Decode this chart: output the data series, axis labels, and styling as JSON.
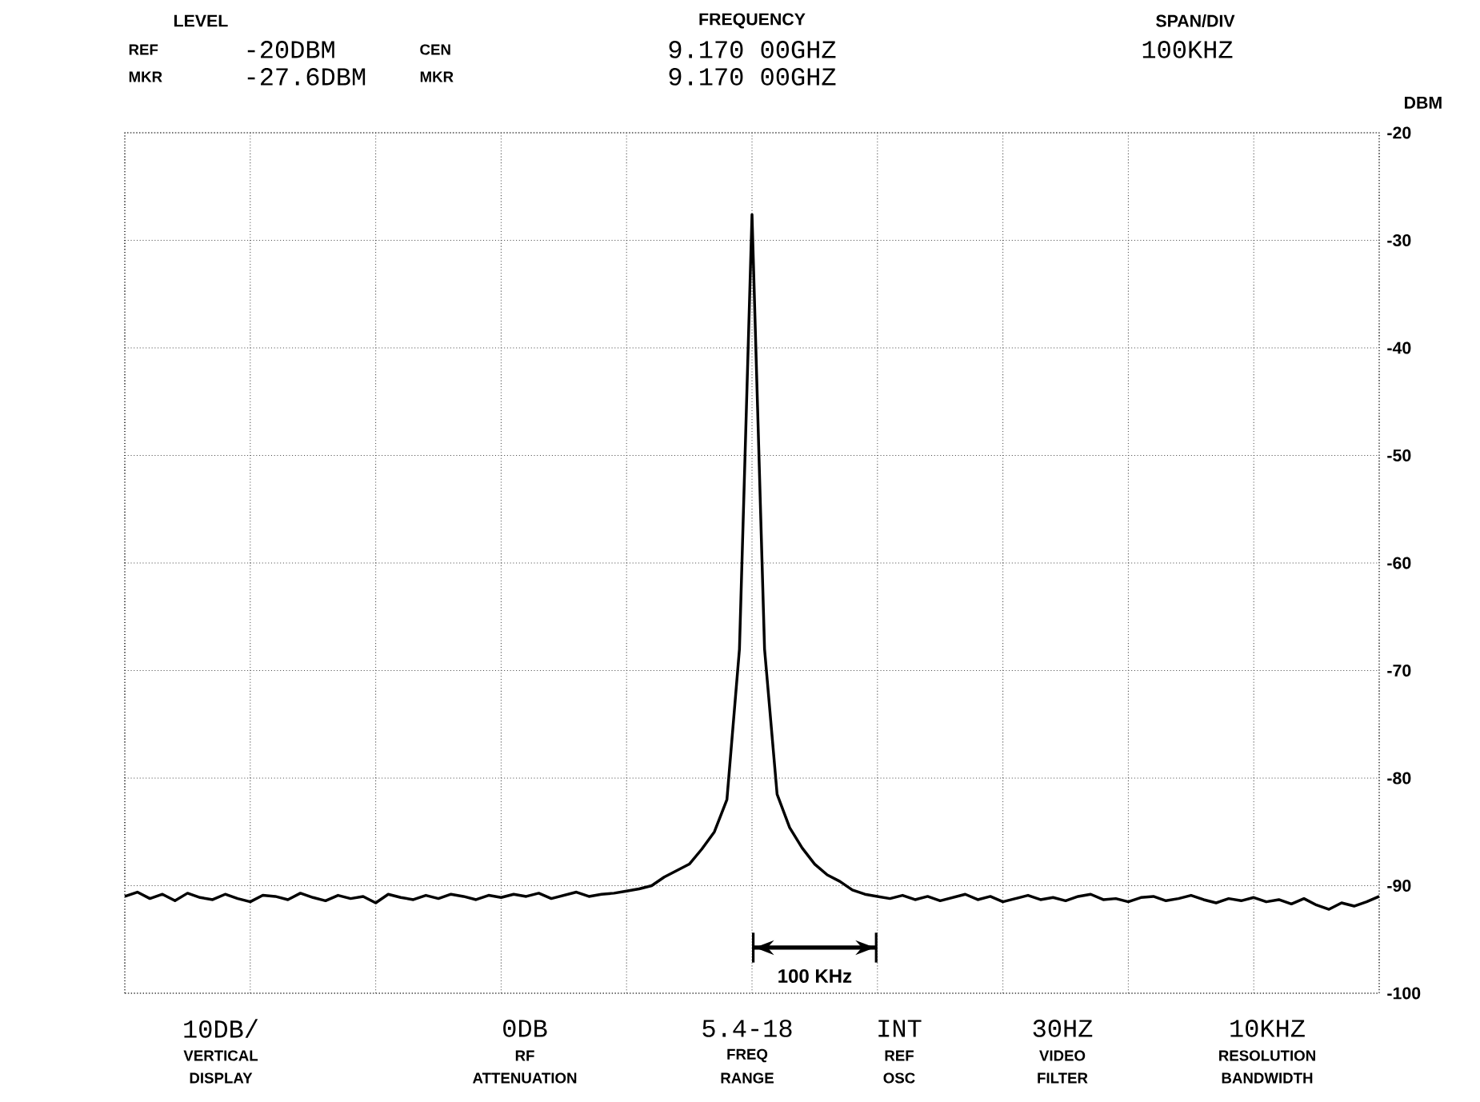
{
  "chart_data": {
    "type": "line",
    "ylabel": "DBM",
    "annotations": [
      "LEVEL",
      "REF",
      "-20DBM",
      "MKR",
      "-27.6DBM",
      "FREQUENCY",
      "CEN",
      "9.170 00GHZ",
      "MKR",
      "9.170 00GHZ",
      "SPAN/DIV",
      "100KHZ",
      "10DB/",
      "VERTICAL",
      "DISPLAY",
      "0DB",
      "RF",
      "ATTENUATION",
      "5.4-18",
      "FREQ",
      "RANGE",
      "INT",
      "REF",
      "OSC",
      "30HZ",
      "VIDEO",
      "FILTER",
      "10KHZ",
      "RESOLUTION",
      "BANDWIDTH",
      "100 KHz"
    ],
    "categories": [
      null,
      null,
      null,
      null,
      null,
      null,
      null,
      null,
      null,
      null,
      null,
      null,
      null,
      null,
      null,
      null,
      null,
      null,
      null,
      null,
      null,
      null,
      null,
      null,
      null,
      null,
      null,
      null,
      null,
      null,
      null,
      null,
      null,
      null,
      null,
      null,
      null,
      null,
      null,
      null,
      null,
      null,
      null,
      null,
      null,
      null,
      null,
      null,
      null,
      null,
      null,
      null,
      null,
      null,
      null,
      null,
      null,
      null,
      null,
      null,
      null,
      null,
      null,
      null,
      null,
      null,
      null,
      null,
      null,
      null,
      null,
      null,
      null,
      null,
      null,
      null,
      null,
      null,
      null,
      null,
      null,
      null,
      null,
      null,
      null,
      null,
      null,
      null,
      null,
      null,
      null,
      null,
      null,
      null,
      null,
      null,
      null,
      null,
      null,
      null,
      null
    ],
    "ylim": [
      -100,
      -20
    ],
    "yticks": [
      -100,
      -90,
      -80,
      -70,
      -60,
      -50,
      -40,
      -30,
      -20
    ],
    "tick_labels": "y",
    "grid": true,
    "line_style": "solid",
    "series": [
      {
        "color": "#000000",
        "values": [
          -91,
          -90.6,
          -91.2,
          -90.8,
          -91.4,
          -90.7,
          -91.1,
          -91.3,
          -90.8,
          -91.2,
          -91.5,
          -90.9,
          -91,
          -91.3,
          -90.7,
          -91.1,
          -91.4,
          -90.9,
          -91.2,
          -91,
          -91.6,
          -90.8,
          -91.1,
          -91.3,
          -90.9,
          -91.2,
          -90.8,
          -91,
          -91.3,
          -90.9,
          -91.1,
          -90.8,
          -91,
          -90.7,
          -91.2,
          -90.9,
          -90.6,
          -91,
          -90.8,
          -90.7,
          -90.5,
          -90.3,
          -90,
          -89.2,
          -88.6,
          -88,
          -86.6,
          -85,
          -82,
          -68,
          -27.6,
          -68,
          -81.5,
          -84.6,
          -86.5,
          -88,
          -89,
          -89.6,
          -90.4,
          -90.8,
          -91,
          -91.2,
          -90.9,
          -91.3,
          -91,
          -91.4,
          -91.1,
          -90.8,
          -91.3,
          -91,
          -91.5,
          -91.2,
          -90.9,
          -91.3,
          -91.1,
          -91.4,
          -91,
          -90.8,
          -91.3,
          -91.2,
          -91.5,
          -91.1,
          -91,
          -91.4,
          -91.2,
          -90.9,
          -91.3,
          -91.6,
          -91.2,
          -91.4,
          -91.1,
          -91.5,
          -91.3,
          -91.7,
          -91.2,
          -91.8,
          -92.2,
          -91.6,
          -91.9,
          -91.5,
          -91
        ]
      }
    ]
  }
}
